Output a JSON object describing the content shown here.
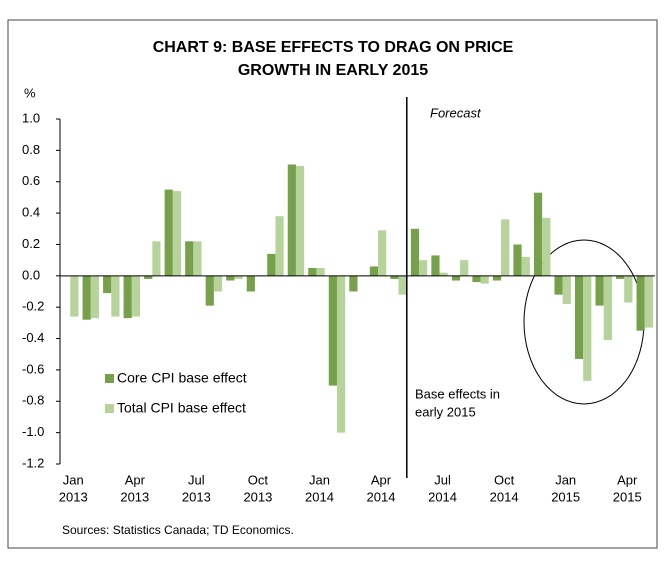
{
  "chart_data": {
    "type": "bar",
    "title": [
      "CHART 9: BASE EFFECTS TO DRAG ON PRICE",
      "GROWTH IN EARLY 2015"
    ],
    "y_axis_label": "%",
    "categories": [
      [
        "Jan",
        "2013"
      ],
      null,
      null,
      [
        "Apr",
        "2013"
      ],
      null,
      null,
      [
        "Jul",
        "2013"
      ],
      null,
      null,
      [
        "Oct",
        "2013"
      ],
      null,
      null,
      [
        "Jan",
        "2014"
      ],
      null,
      null,
      [
        "Apr",
        "2014"
      ],
      null,
      null,
      [
        "Jul",
        "2014"
      ],
      null,
      null,
      [
        "Oct",
        "2014"
      ],
      null,
      null,
      [
        "Jan",
        "2015"
      ],
      null,
      null,
      [
        "Apr",
        "2015"
      ],
      null
    ],
    "series": [
      {
        "name": "Core CPI base effect",
        "color": "#77a04a",
        "values": [
          0.0,
          -0.28,
          -0.11,
          -0.27,
          -0.02,
          0.55,
          0.22,
          -0.19,
          -0.03,
          -0.1,
          0.14,
          0.71,
          0.05,
          -0.7,
          -0.1,
          0.06,
          -0.02,
          0.3,
          0.13,
          -0.03,
          -0.04,
          -0.03,
          0.2,
          0.53,
          -0.12,
          -0.53,
          -0.19,
          -0.02,
          -0.35
        ]
      },
      {
        "name": "Total CPI base effect",
        "color": "#b6d39b",
        "values": [
          -0.26,
          -0.27,
          -0.26,
          -0.26,
          0.22,
          0.54,
          0.22,
          -0.1,
          -0.02,
          0.0,
          0.38,
          0.7,
          0.05,
          -1.0,
          0.0,
          0.29,
          -0.12,
          0.1,
          0.02,
          0.1,
          -0.05,
          0.36,
          0.12,
          0.37,
          -0.18,
          -0.67,
          -0.41,
          -0.17,
          -0.33
        ]
      }
    ],
    "ylim": [
      -1.2,
      1.0
    ],
    "yticks": [
      -1.2,
      {
        "value": -1,
        "label": "-1.0"
      },
      -0.8,
      -0.6,
      -0.4,
      -0.2,
      {
        "value": 0,
        "label": "0.0"
      },
      0.2,
      0.4,
      0.6,
      0.8,
      {
        "value": 1,
        "label": "1.0"
      }
    ],
    "annotations": [
      "Forecast",
      [
        "Base effects in",
        "early 2015"
      ]
    ],
    "source": "Sources: Statistics Canada; TD Economics."
  }
}
